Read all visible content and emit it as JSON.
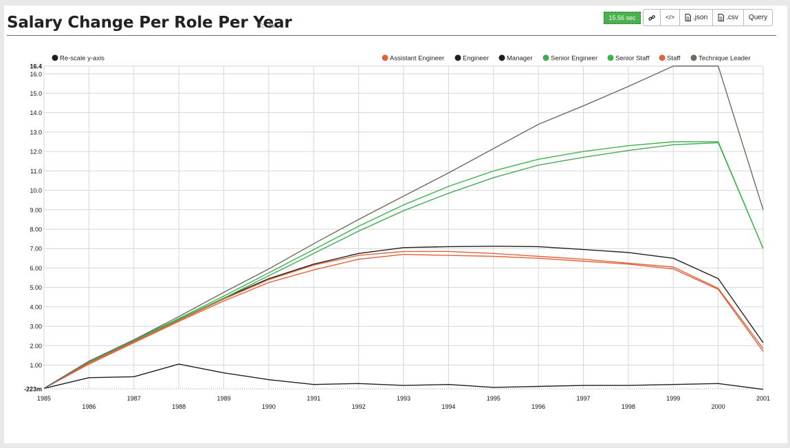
{
  "header": {
    "title": "Salary Change Per Role Per Year",
    "favorite_icon": "star-outline-icon",
    "edit_icon": "edit-icon",
    "timer": "15.56 sec"
  },
  "toolbar": {
    "link_icon": "link-icon",
    "embed_icon": "code-icon",
    "json_label": ".json",
    "csv_label": ".csv",
    "query_label": "Query"
  },
  "chart_data": {
    "type": "line",
    "title": "",
    "xlabel": "",
    "ylabel": "",
    "rescale_label": "Re-scale y-axis",
    "x": [
      1985,
      1986,
      1987,
      1988,
      1989,
      1990,
      1991,
      1992,
      1993,
      1994,
      1995,
      1996,
      1997,
      1998,
      1999,
      2000,
      2001
    ],
    "xlim": [
      1985,
      2001
    ],
    "ylim": [
      -0.223,
      16.4
    ],
    "y_ticks": [
      {
        "value": -0.223,
        "label": "-223m",
        "bold": true
      },
      {
        "value": 1,
        "label": "1.00"
      },
      {
        "value": 2,
        "label": "2.00"
      },
      {
        "value": 3,
        "label": "3.00"
      },
      {
        "value": 4,
        "label": "4.00"
      },
      {
        "value": 5,
        "label": "5.00"
      },
      {
        "value": 6,
        "label": "6.00"
      },
      {
        "value": 7,
        "label": "7.00"
      },
      {
        "value": 8,
        "label": "8.00"
      },
      {
        "value": 9,
        "label": "9.00"
      },
      {
        "value": 10,
        "label": "10.0"
      },
      {
        "value": 11,
        "label": "11.0"
      },
      {
        "value": 12,
        "label": "12.0"
      },
      {
        "value": 13,
        "label": "13.0"
      },
      {
        "value": 14,
        "label": "14.0"
      },
      {
        "value": 15,
        "label": "15.0"
      },
      {
        "value": 16,
        "label": "16.0"
      },
      {
        "value": 16.4,
        "label": "16.4",
        "bold": true
      }
    ],
    "grid": true,
    "legend_position": "top-right",
    "series": [
      {
        "name": "Assistant Engineer",
        "color": "#e0623a",
        "values": [
          -0.2,
          1.05,
          2.15,
          3.25,
          4.3,
          5.25,
          5.9,
          6.45,
          6.7,
          6.65,
          6.6,
          6.5,
          6.35,
          6.2,
          5.95,
          4.9,
          1.7
        ]
      },
      {
        "name": "Engineer",
        "color": "#1f1f1f",
        "values": [
          -0.2,
          1.15,
          2.25,
          3.35,
          4.45,
          5.45,
          6.2,
          6.75,
          7.05,
          7.1,
          7.12,
          7.1,
          6.95,
          6.8,
          6.5,
          5.45,
          2.15
        ]
      },
      {
        "name": "Manager",
        "color": "#1f1f1f",
        "values": [
          -0.2,
          0.35,
          0.4,
          1.05,
          0.6,
          0.25,
          0.0,
          0.05,
          -0.05,
          0.0,
          -0.15,
          -0.1,
          -0.05,
          -0.05,
          0.0,
          0.05,
          -0.25
        ]
      },
      {
        "name": "Senior Engineer",
        "color": "#44aa55",
        "values": [
          -0.2,
          1.15,
          2.25,
          3.35,
          4.45,
          5.6,
          6.75,
          7.9,
          8.95,
          9.85,
          10.65,
          11.3,
          11.7,
          12.05,
          12.35,
          12.45,
          7.0
        ]
      },
      {
        "name": "Senior Staff",
        "color": "#3bb54a",
        "values": [
          -0.2,
          1.2,
          2.3,
          3.4,
          4.55,
          5.75,
          6.95,
          8.15,
          9.25,
          10.2,
          11.0,
          11.6,
          12.0,
          12.3,
          12.5,
          12.5,
          7.0
        ]
      },
      {
        "name": "Staff",
        "color": "#e0623a",
        "values": [
          -0.2,
          1.1,
          2.2,
          3.3,
          4.4,
          5.4,
          6.15,
          6.65,
          6.85,
          6.85,
          6.75,
          6.6,
          6.45,
          6.25,
          6.05,
          4.95,
          1.85
        ]
      },
      {
        "name": "Technique Leader",
        "color": "#6b6b5e",
        "values": [
          -0.2,
          1.2,
          2.3,
          3.5,
          4.75,
          5.95,
          7.25,
          8.5,
          9.7,
          10.9,
          12.15,
          13.4,
          14.35,
          15.35,
          16.4,
          16.4,
          9.0
        ]
      }
    ]
  }
}
